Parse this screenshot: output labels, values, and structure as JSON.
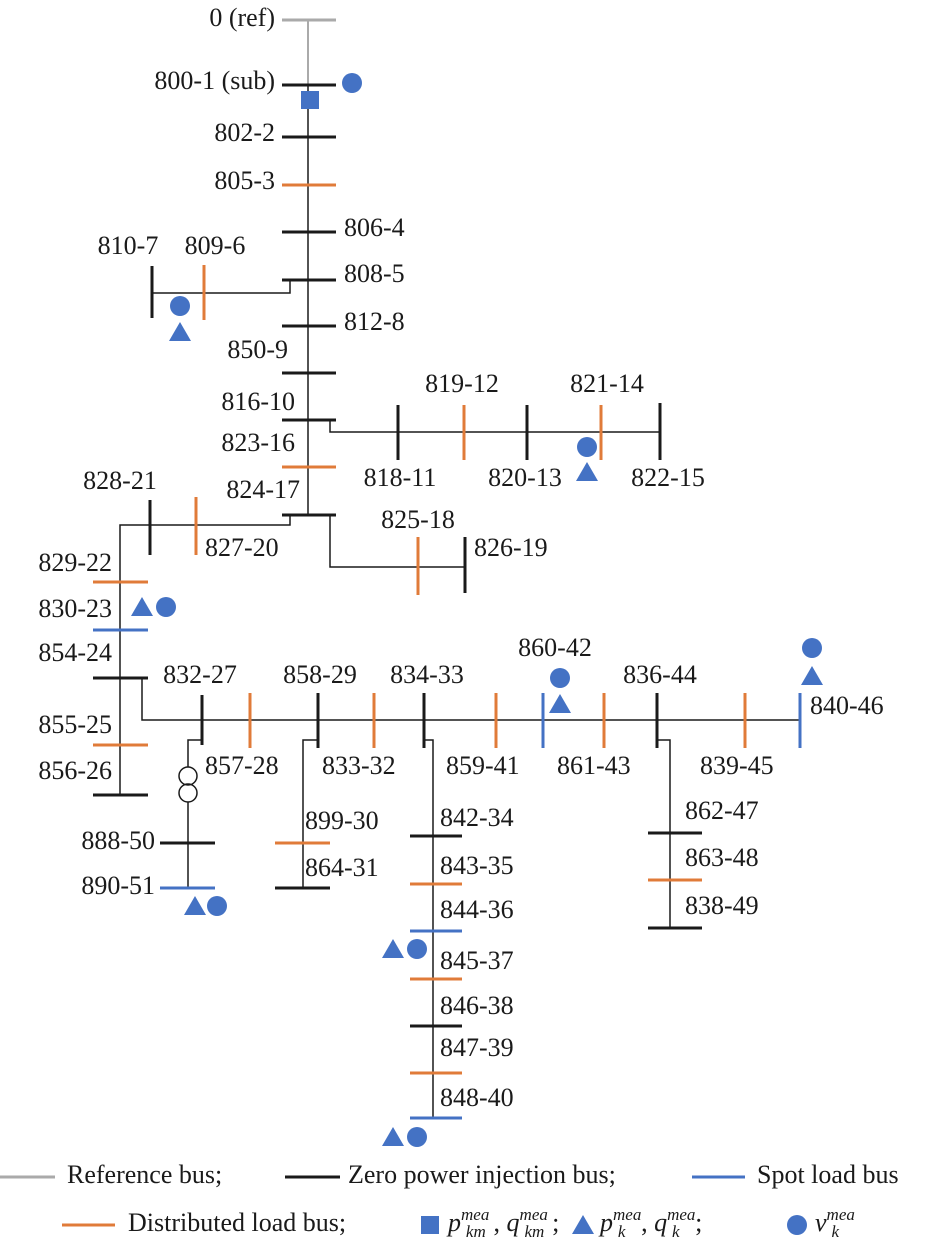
{
  "diagram": {
    "colors": {
      "reference": "#aaaaaa",
      "zero": "#1a1a1a",
      "spot": "#4472c4",
      "distributed": "#e07b39",
      "marker": "#4472c4"
    },
    "nodes": [
      {
        "label": "0 (ref)",
        "kind": "reference"
      },
      {
        "label": "800-1 (sub)",
        "kind": "zero"
      },
      {
        "label": "802-2",
        "kind": "zero"
      },
      {
        "label": "805-3",
        "kind": "distributed"
      },
      {
        "label": "806-4",
        "kind": "zero"
      },
      {
        "label": "808-5",
        "kind": "zero"
      },
      {
        "label": "809-6",
        "kind": "distributed"
      },
      {
        "label": "810-7",
        "kind": "zero"
      },
      {
        "label": "812-8",
        "kind": "zero"
      },
      {
        "label": "850-9",
        "kind": "zero"
      },
      {
        "label": "816-10",
        "kind": "zero"
      },
      {
        "label": "818-11",
        "kind": "zero"
      },
      {
        "label": "819-12",
        "kind": "distributed"
      },
      {
        "label": "820-13",
        "kind": "zero"
      },
      {
        "label": "821-14",
        "kind": "distributed"
      },
      {
        "label": "822-15",
        "kind": "zero"
      },
      {
        "label": "823-16",
        "kind": "distributed"
      },
      {
        "label": "824-17",
        "kind": "zero"
      },
      {
        "label": "825-18",
        "kind": "distributed"
      },
      {
        "label": "826-19",
        "kind": "zero"
      },
      {
        "label": "827-20",
        "kind": "distributed"
      },
      {
        "label": "828-21",
        "kind": "zero"
      },
      {
        "label": "829-22",
        "kind": "distributed"
      },
      {
        "label": "830-23",
        "kind": "spot"
      },
      {
        "label": "854-24",
        "kind": "zero"
      },
      {
        "label": "855-25",
        "kind": "distributed"
      },
      {
        "label": "856-26",
        "kind": "zero"
      },
      {
        "label": "832-27",
        "kind": "zero"
      },
      {
        "label": "857-28",
        "kind": "distributed"
      },
      {
        "label": "858-29",
        "kind": "zero"
      },
      {
        "label": "899-30",
        "kind": "distributed"
      },
      {
        "label": "864-31",
        "kind": "zero"
      },
      {
        "label": "833-32",
        "kind": "distributed"
      },
      {
        "label": "834-33",
        "kind": "zero"
      },
      {
        "label": "842-34",
        "kind": "zero"
      },
      {
        "label": "843-35",
        "kind": "distributed"
      },
      {
        "label": "844-36",
        "kind": "spot"
      },
      {
        "label": "845-37",
        "kind": "distributed"
      },
      {
        "label": "846-38",
        "kind": "zero"
      },
      {
        "label": "847-39",
        "kind": "distributed"
      },
      {
        "label": "848-40",
        "kind": "spot"
      },
      {
        "label": "859-41",
        "kind": "distributed"
      },
      {
        "label": "860-42",
        "kind": "spot"
      },
      {
        "label": "861-43",
        "kind": "distributed"
      },
      {
        "label": "836-44",
        "kind": "zero"
      },
      {
        "label": "839-45",
        "kind": "distributed"
      },
      {
        "label": "840-46",
        "kind": "spot"
      },
      {
        "label": "862-47",
        "kind": "zero"
      },
      {
        "label": "863-48",
        "kind": "distributed"
      },
      {
        "label": "838-49",
        "kind": "zero"
      },
      {
        "label": "888-50",
        "kind": "zero"
      },
      {
        "label": "890-51",
        "kind": "spot"
      }
    ],
    "legend": {
      "bus_kinds": [
        {
          "kind": "reference",
          "label": "Reference bus;"
        },
        {
          "kind": "zero",
          "label": "Zero power injection bus;"
        },
        {
          "kind": "spot",
          "label": "Spot load bus"
        },
        {
          "kind": "distributed",
          "label": "Distributed load bus;"
        }
      ],
      "measurements": [
        {
          "marker": "square",
          "terms": [
            {
              "base": "p",
              "sub": "km",
              "sup": "mea",
              "after": ", "
            },
            {
              "base": "q",
              "sub": "km",
              "sup": "mea",
              "after": ";"
            }
          ]
        },
        {
          "marker": "triangle",
          "terms": [
            {
              "base": "p",
              "sub": "k",
              "sup": "mea",
              "after": ", "
            },
            {
              "base": "q",
              "sub": "k",
              "sup": "mea",
              "after": ";"
            }
          ]
        },
        {
          "marker": "circle",
          "terms": [
            {
              "base": "v",
              "sub": "k",
              "sup": "mea",
              "after": ""
            }
          ]
        }
      ]
    }
  }
}
